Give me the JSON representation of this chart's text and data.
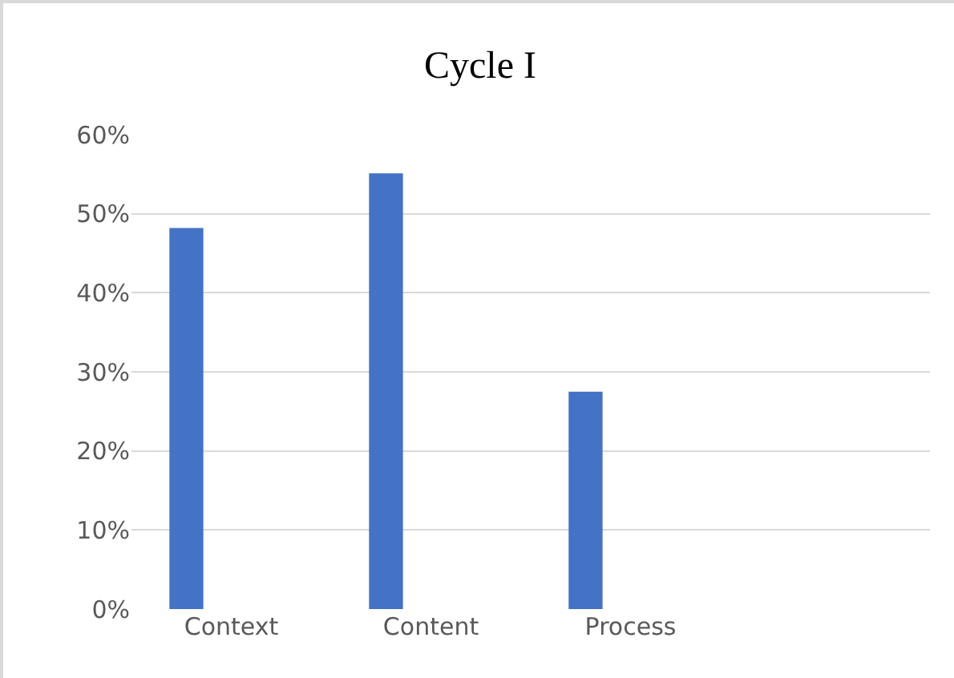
{
  "chart_data": {
    "type": "bar",
    "title": "Cycle I",
    "categories": [
      "Context",
      "Content",
      "Process",
      null
    ],
    "series": [
      {
        "color": "#4472c4",
        "values": [
          48.2,
          55.1,
          27.5,
          null
        ]
      }
    ],
    "ylim": [
      0,
      60
    ],
    "yticks": [
      {
        "value": 0,
        "label": "0%"
      },
      {
        "value": 10,
        "label": "10%"
      },
      {
        "value": 20,
        "label": "20%"
      },
      {
        "value": 30,
        "label": "30%"
      },
      {
        "value": 40,
        "label": "40%"
      },
      {
        "value": 50,
        "label": "50%"
      },
      {
        "value": 60,
        "label": "60%"
      }
    ],
    "grid": "y"
  }
}
